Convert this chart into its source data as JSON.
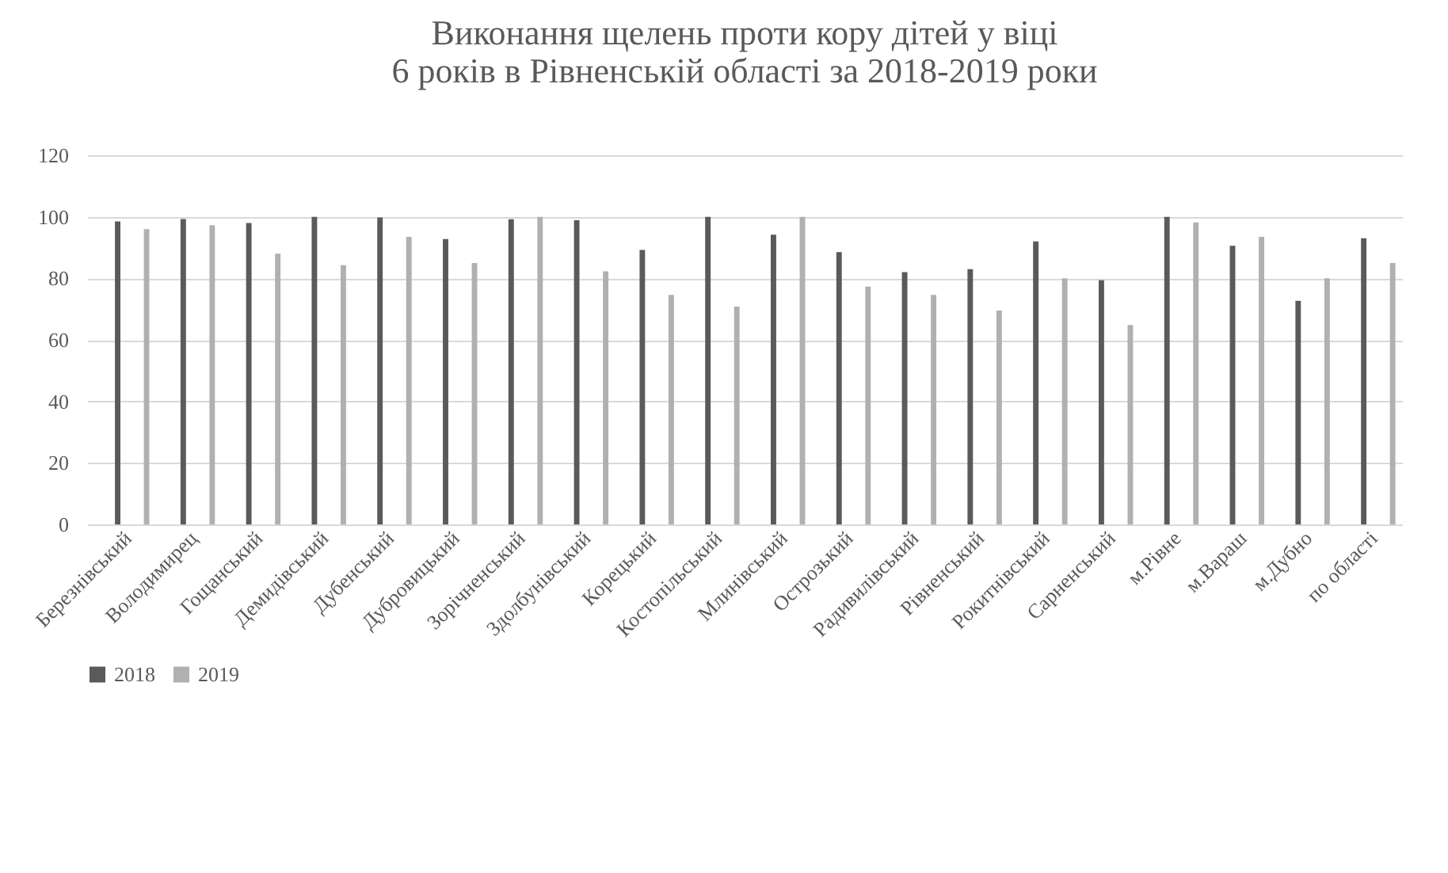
{
  "chart_data": {
    "type": "bar",
    "title": "Виконання щелень проти кору дітей у віці\n6 років в Рівненській області за 2018-2019 роки",
    "categories": [
      "Березнівський",
      "Володимирец",
      "Гощанський",
      "Демидівський",
      "Дубенський",
      "Дубровицький",
      "Зорічненський",
      "Здолбунівський",
      "Корецький",
      "Костопільський",
      "Млинівський",
      "Острозький",
      "Радивилівський",
      "Рівненський",
      "Рокитнівський",
      "Сарненський",
      "м.Рівне",
      "м.Вараш",
      "м.Дубно",
      "по області"
    ],
    "series": [
      {
        "name": "2018",
        "color": "#5a5a5a",
        "values": [
          98.5,
          99.3,
          98,
          100,
          99.8,
          92.8,
          99.2,
          98.9,
          89.2,
          100,
          94.2,
          88.5,
          82,
          83,
          92,
          79.4,
          100,
          90.6,
          72.7,
          93
        ]
      },
      {
        "name": "2019",
        "color": "#b0b0b0",
        "values": [
          96,
          97.3,
          88,
          84.3,
          93.5,
          85,
          100,
          82.3,
          74.6,
          70.8,
          100,
          77.3,
          74.6,
          69.5,
          80,
          64.8,
          98.2,
          93.5,
          80,
          85
        ]
      }
    ],
    "ylim": [
      0,
      120
    ],
    "yticks": [
      0,
      20,
      40,
      60,
      80,
      100,
      120
    ],
    "grid": "y",
    "legend": "bottom"
  }
}
